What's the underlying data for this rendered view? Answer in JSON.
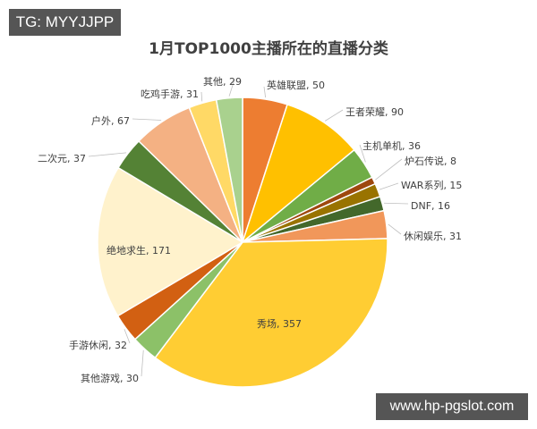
{
  "tag": "TG: MYYJJPP",
  "watermark": "www.hp-pgslot.com",
  "chart_data": {
    "type": "pie",
    "title": "1月TOP1000主播所在的直播分类",
    "start_angle": "12 o'clock, clockwise",
    "total": 1000,
    "categories": [
      "英雄联盟",
      "王者荣耀",
      "主机单机",
      "炉石传说",
      "WAR系列",
      "DNF",
      "休闲娱乐",
      "秀场",
      "其他游戏",
      "手游休闲",
      "绝地求生",
      "二次元",
      "户外",
      "吃鸡手游",
      "其他"
    ],
    "values": [
      50,
      90,
      36,
      8,
      15,
      16,
      31,
      357,
      30,
      32,
      171,
      37,
      67,
      31,
      29
    ],
    "colors": [
      "#ED7D31",
      "#FFC000",
      "#70AD47",
      "#9E480E",
      "#997300",
      "#43682B",
      "#F1975A",
      "#FFCD33",
      "#8CC168",
      "#D26012",
      "#FFF2CC",
      "#548235",
      "#F4B183",
      "#FFD966",
      "#A9D18E"
    ],
    "labels": [
      "英雄联盟, 50",
      "王者荣耀, 90",
      "主机单机, 36",
      "炉石传说, 8",
      "WAR系列, 15",
      "DNF, 16",
      "休闲娱乐, 31",
      "秀场, 357",
      "其他游戏, 30",
      "手游休闲, 32",
      "绝地求生, 171",
      "二次元, 37",
      "户外, 67",
      "吃鸡手游, 31",
      "其他, 29"
    ],
    "legend": "none (data labels with leader lines)"
  }
}
